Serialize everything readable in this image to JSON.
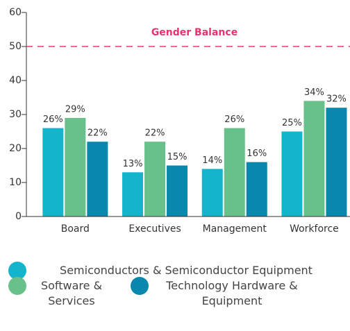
{
  "chart_data": {
    "type": "bar",
    "categories": [
      "Board",
      "Executives",
      "Management",
      "Workforce"
    ],
    "series": [
      {
        "name": "Semiconductors & Semiconductor Equipment",
        "color": "#12b5cc",
        "values": [
          26,
          13,
          14,
          25
        ],
        "value_labels": [
          "26%",
          "13%",
          "14%",
          "25%"
        ]
      },
      {
        "name": "Software & Services",
        "color": "#68c18b",
        "values": [
          29,
          22,
          26,
          34
        ],
        "value_labels": [
          "29%",
          "22%",
          "26%",
          "34%"
        ]
      },
      {
        "name": "Technology Hardware & Equipment",
        "color": "#0a87ad",
        "values": [
          22,
          15,
          16,
          32
        ],
        "value_labels": [
          "22%",
          "15%",
          "16%",
          "32%"
        ]
      }
    ],
    "ylim": [
      0,
      60
    ],
    "yticks": [
      0,
      10,
      20,
      30,
      40,
      50,
      60
    ],
    "annotation": {
      "text": "Gender Balance",
      "value": 50,
      "color": "#e8336d"
    }
  }
}
